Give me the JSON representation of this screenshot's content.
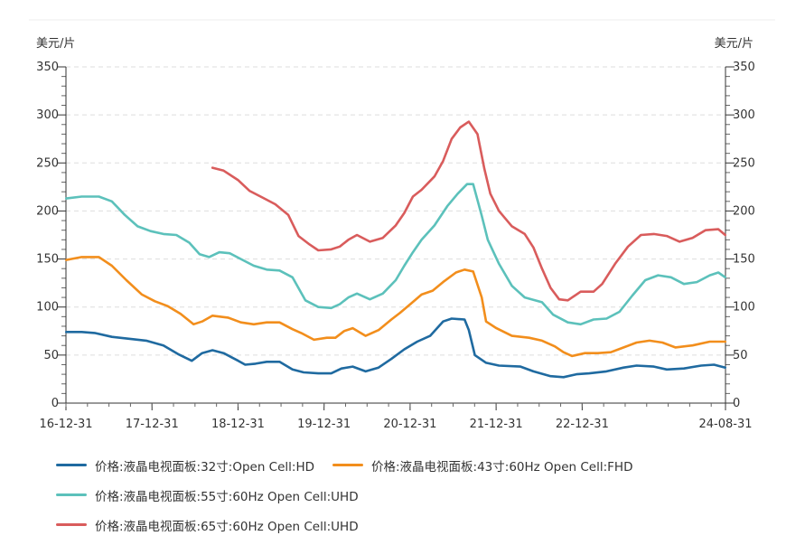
{
  "chart_data": {
    "type": "line",
    "title": "",
    "y_unit_left": "美元/片",
    "y_unit_right": "美元/片",
    "ylim": [
      0,
      350
    ],
    "y_ticks": [
      "0",
      "50",
      "100",
      "150",
      "200",
      "250",
      "300",
      "350"
    ],
    "x_range": [
      2016.917,
      2024.583
    ],
    "x_tick_labels": [
      "16-12-31",
      "17-12-31",
      "18-12-31",
      "19-12-31",
      "20-12-31",
      "21-12-31",
      "22-12-31",
      "24-08-31"
    ],
    "x_tick_values": [
      2016.917,
      2017.917,
      2018.917,
      2019.917,
      2020.917,
      2021.917,
      2022.917,
      2024.583
    ],
    "grid": true,
    "legend_position": "bottom",
    "series": [
      {
        "name": "价格:液晶电视面板:32寸:Open Cell:HD",
        "color": "#1f6aa0",
        "points": [
          [
            2016.92,
            74
          ],
          [
            2017.1,
            74
          ],
          [
            2017.25,
            73
          ],
          [
            2017.45,
            69
          ],
          [
            2017.65,
            67
          ],
          [
            2017.85,
            65
          ],
          [
            2018.05,
            60
          ],
          [
            2018.22,
            51
          ],
          [
            2018.38,
            44
          ],
          [
            2018.5,
            52
          ],
          [
            2018.62,
            55
          ],
          [
            2018.75,
            52
          ],
          [
            2018.92,
            44
          ],
          [
            2019.0,
            40
          ],
          [
            2019.12,
            41
          ],
          [
            2019.25,
            43
          ],
          [
            2019.4,
            43
          ],
          [
            2019.55,
            35
          ],
          [
            2019.68,
            32
          ],
          [
            2019.85,
            31
          ],
          [
            2020.0,
            31
          ],
          [
            2020.12,
            36
          ],
          [
            2020.25,
            38
          ],
          [
            2020.4,
            33
          ],
          [
            2020.55,
            37
          ],
          [
            2020.7,
            46
          ],
          [
            2020.85,
            56
          ],
          [
            2021.0,
            64
          ],
          [
            2021.15,
            70
          ],
          [
            2021.3,
            85
          ],
          [
            2021.4,
            88
          ],
          [
            2021.55,
            87
          ],
          [
            2021.6,
            76
          ],
          [
            2021.67,
            50
          ],
          [
            2021.8,
            42
          ],
          [
            2021.95,
            39
          ],
          [
            2022.2,
            38
          ],
          [
            2022.35,
            33
          ],
          [
            2022.55,
            28
          ],
          [
            2022.7,
            27
          ],
          [
            2022.85,
            30
          ],
          [
            2023.0,
            31
          ],
          [
            2023.2,
            33
          ],
          [
            2023.4,
            37
          ],
          [
            2023.55,
            39
          ],
          [
            2023.75,
            38
          ],
          [
            2023.9,
            35
          ],
          [
            2024.1,
            36
          ],
          [
            2024.3,
            39
          ],
          [
            2024.45,
            40
          ],
          [
            2024.58,
            37
          ]
        ]
      },
      {
        "name": "价格:液晶电视面板:43寸:60Hz Open Cell:FHD",
        "color": "#f28e1c",
        "points": [
          [
            2016.92,
            149
          ],
          [
            2017.1,
            152
          ],
          [
            2017.3,
            152
          ],
          [
            2017.45,
            143
          ],
          [
            2017.62,
            128
          ],
          [
            2017.8,
            113
          ],
          [
            2017.95,
            106
          ],
          [
            2018.1,
            101
          ],
          [
            2018.25,
            93
          ],
          [
            2018.4,
            82
          ],
          [
            2018.5,
            85
          ],
          [
            2018.62,
            91
          ],
          [
            2018.8,
            89
          ],
          [
            2018.95,
            84
          ],
          [
            2019.1,
            82
          ],
          [
            2019.25,
            84
          ],
          [
            2019.4,
            84
          ],
          [
            2019.55,
            77
          ],
          [
            2019.65,
            73
          ],
          [
            2019.8,
            66
          ],
          [
            2019.95,
            68
          ],
          [
            2020.05,
            68
          ],
          [
            2020.15,
            75
          ],
          [
            2020.25,
            78
          ],
          [
            2020.4,
            70
          ],
          [
            2020.55,
            76
          ],
          [
            2020.7,
            87
          ],
          [
            2020.8,
            94
          ],
          [
            2020.92,
            103
          ],
          [
            2021.05,
            113
          ],
          [
            2021.18,
            117
          ],
          [
            2021.3,
            126
          ],
          [
            2021.45,
            136
          ],
          [
            2021.55,
            139
          ],
          [
            2021.65,
            137
          ],
          [
            2021.75,
            110
          ],
          [
            2021.8,
            85
          ],
          [
            2021.92,
            78
          ],
          [
            2022.1,
            70
          ],
          [
            2022.3,
            68
          ],
          [
            2022.45,
            65
          ],
          [
            2022.6,
            59
          ],
          [
            2022.7,
            53
          ],
          [
            2022.8,
            49
          ],
          [
            2022.95,
            52
          ],
          [
            2023.1,
            52
          ],
          [
            2023.25,
            53
          ],
          [
            2023.4,
            58
          ],
          [
            2023.55,
            63
          ],
          [
            2023.7,
            65
          ],
          [
            2023.85,
            63
          ],
          [
            2024.0,
            58
          ],
          [
            2024.2,
            60
          ],
          [
            2024.4,
            64
          ],
          [
            2024.58,
            64
          ]
        ]
      },
      {
        "name": "价格:液晶电视面板:55寸:60Hz Open Cell:UHD",
        "color": "#5cc1bb",
        "points": [
          [
            2016.92,
            213
          ],
          [
            2017.1,
            215
          ],
          [
            2017.3,
            215
          ],
          [
            2017.45,
            210
          ],
          [
            2017.6,
            196
          ],
          [
            2017.75,
            184
          ],
          [
            2017.9,
            179
          ],
          [
            2018.05,
            176
          ],
          [
            2018.2,
            175
          ],
          [
            2018.35,
            167
          ],
          [
            2018.47,
            155
          ],
          [
            2018.58,
            152
          ],
          [
            2018.7,
            157
          ],
          [
            2018.82,
            156
          ],
          [
            2018.95,
            150
          ],
          [
            2019.1,
            143
          ],
          [
            2019.25,
            139
          ],
          [
            2019.4,
            138
          ],
          [
            2019.55,
            131
          ],
          [
            2019.7,
            107
          ],
          [
            2019.85,
            100
          ],
          [
            2020.0,
            99
          ],
          [
            2020.1,
            103
          ],
          [
            2020.2,
            110
          ],
          [
            2020.3,
            114
          ],
          [
            2020.45,
            108
          ],
          [
            2020.6,
            114
          ],
          [
            2020.75,
            128
          ],
          [
            2020.85,
            143
          ],
          [
            2020.95,
            157
          ],
          [
            2021.05,
            170
          ],
          [
            2021.2,
            185
          ],
          [
            2021.35,
            205
          ],
          [
            2021.47,
            218
          ],
          [
            2021.58,
            228
          ],
          [
            2021.65,
            228
          ],
          [
            2021.75,
            195
          ],
          [
            2021.82,
            170
          ],
          [
            2021.95,
            145
          ],
          [
            2022.1,
            122
          ],
          [
            2022.25,
            110
          ],
          [
            2022.45,
            105
          ],
          [
            2022.58,
            92
          ],
          [
            2022.75,
            84
          ],
          [
            2022.9,
            82
          ],
          [
            2023.05,
            87
          ],
          [
            2023.2,
            88
          ],
          [
            2023.35,
            95
          ],
          [
            2023.5,
            112
          ],
          [
            2023.65,
            128
          ],
          [
            2023.8,
            133
          ],
          [
            2023.95,
            131
          ],
          [
            2024.1,
            124
          ],
          [
            2024.25,
            126
          ],
          [
            2024.4,
            133
          ],
          [
            2024.5,
            136
          ],
          [
            2024.58,
            131
          ]
        ]
      },
      {
        "name": "价格:液晶电视面板:65寸:60Hz Open Cell:UHD",
        "color": "#d95c5c",
        "points": [
          [
            2018.62,
            245
          ],
          [
            2018.75,
            242
          ],
          [
            2018.92,
            232
          ],
          [
            2019.05,
            221
          ],
          [
            2019.2,
            214
          ],
          [
            2019.35,
            207
          ],
          [
            2019.5,
            196
          ],
          [
            2019.62,
            174
          ],
          [
            2019.75,
            165
          ],
          [
            2019.85,
            159
          ],
          [
            2020.0,
            160
          ],
          [
            2020.1,
            163
          ],
          [
            2020.2,
            170
          ],
          [
            2020.3,
            175
          ],
          [
            2020.45,
            168
          ],
          [
            2020.6,
            172
          ],
          [
            2020.75,
            185
          ],
          [
            2020.85,
            198
          ],
          [
            2020.95,
            215
          ],
          [
            2021.05,
            222
          ],
          [
            2021.2,
            236
          ],
          [
            2021.3,
            252
          ],
          [
            2021.4,
            275
          ],
          [
            2021.5,
            287
          ],
          [
            2021.6,
            293
          ],
          [
            2021.7,
            280
          ],
          [
            2021.78,
            244
          ],
          [
            2021.85,
            218
          ],
          [
            2021.95,
            200
          ],
          [
            2022.1,
            184
          ],
          [
            2022.25,
            176
          ],
          [
            2022.35,
            162
          ],
          [
            2022.45,
            140
          ],
          [
            2022.55,
            120
          ],
          [
            2022.65,
            108
          ],
          [
            2022.75,
            107
          ],
          [
            2022.9,
            116
          ],
          [
            2023.05,
            116
          ],
          [
            2023.15,
            124
          ],
          [
            2023.3,
            145
          ],
          [
            2023.45,
            163
          ],
          [
            2023.6,
            175
          ],
          [
            2023.75,
            176
          ],
          [
            2023.9,
            174
          ],
          [
            2024.05,
            168
          ],
          [
            2024.2,
            172
          ],
          [
            2024.35,
            180
          ],
          [
            2024.5,
            181
          ],
          [
            2024.58,
            175
          ]
        ]
      }
    ]
  }
}
